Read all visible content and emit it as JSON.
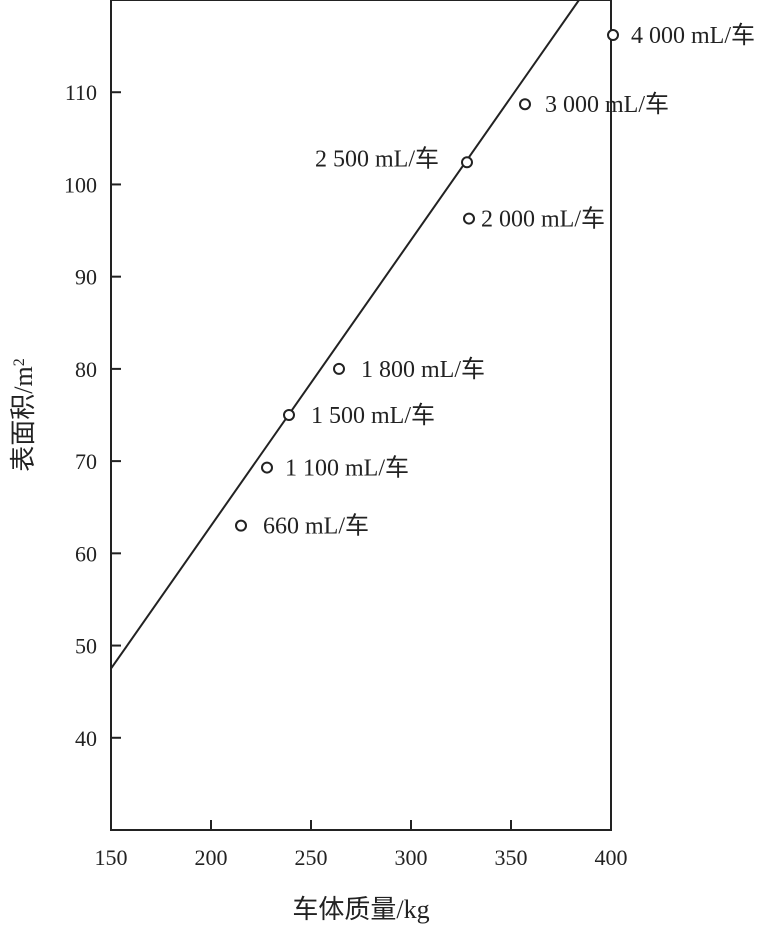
{
  "chart_data": {
    "type": "scatter",
    "title": "",
    "xlabel": "车体质量/kg",
    "ylabel_main": "表面积/m",
    "ylabel_sup": "2",
    "xlim": [
      150,
      400
    ],
    "ylim": [
      30,
      120
    ],
    "xticks": [
      150,
      200,
      250,
      300,
      350,
      400
    ],
    "yticks": [
      40,
      50,
      60,
      70,
      80,
      90,
      100,
      110
    ],
    "grid": false,
    "points": [
      {
        "x": 215,
        "y": 63,
        "label": "660 mL/车"
      },
      {
        "x": 228,
        "y": 69.3,
        "label": "1 100 mL/车"
      },
      {
        "x": 239,
        "y": 75,
        "label": "1 500 mL/车"
      },
      {
        "x": 264,
        "y": 80,
        "label": "1 800 mL/车"
      },
      {
        "x": 329,
        "y": 96.3,
        "label": "2 000 mL/车"
      },
      {
        "x": 328,
        "y": 102.4,
        "label": "2 500 mL/车"
      },
      {
        "x": 357,
        "y": 108.7,
        "label": "3 000 mL/车"
      },
      {
        "x": 401,
        "y": 116.2,
        "label": "4 000 mL/车"
      }
    ],
    "fit_line": {
      "x": [
        150,
        384
      ],
      "y": [
        47.5,
        120
      ]
    }
  }
}
